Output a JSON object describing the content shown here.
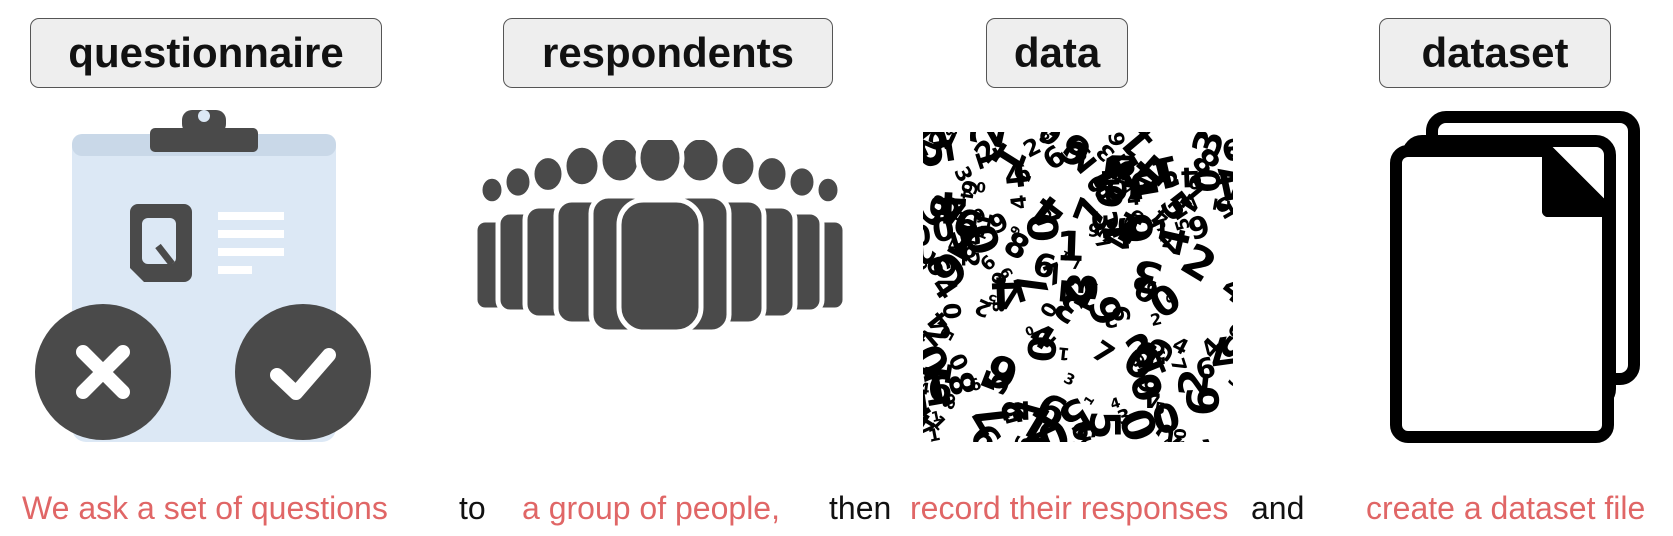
{
  "colors": {
    "caption_accent": "#e06666",
    "caption_plain": "#111111",
    "icon_dark": "#4a4a4a",
    "clipboard_fill": "#dce8f5",
    "label_bg": "#eeeeee"
  },
  "steps": [
    {
      "label": "questionnaire",
      "icon": "clipboard-questionnaire-icon"
    },
    {
      "label": "respondents",
      "icon": "crowd-icon"
    },
    {
      "label": "data",
      "icon": "numbers-pattern-icon"
    },
    {
      "label": "dataset",
      "icon": "stacked-documents-icon"
    }
  ],
  "captions": [
    {
      "text": "We ask a set of questions",
      "style": "accent"
    },
    {
      "text": "to",
      "style": "plain"
    },
    {
      "text": "a group of people,",
      "style": "accent"
    },
    {
      "text": "then",
      "style": "plain"
    },
    {
      "text": "record their responses",
      "style": "accent"
    },
    {
      "text": "and",
      "style": "plain"
    },
    {
      "text": "create a dataset file",
      "style": "accent"
    }
  ]
}
